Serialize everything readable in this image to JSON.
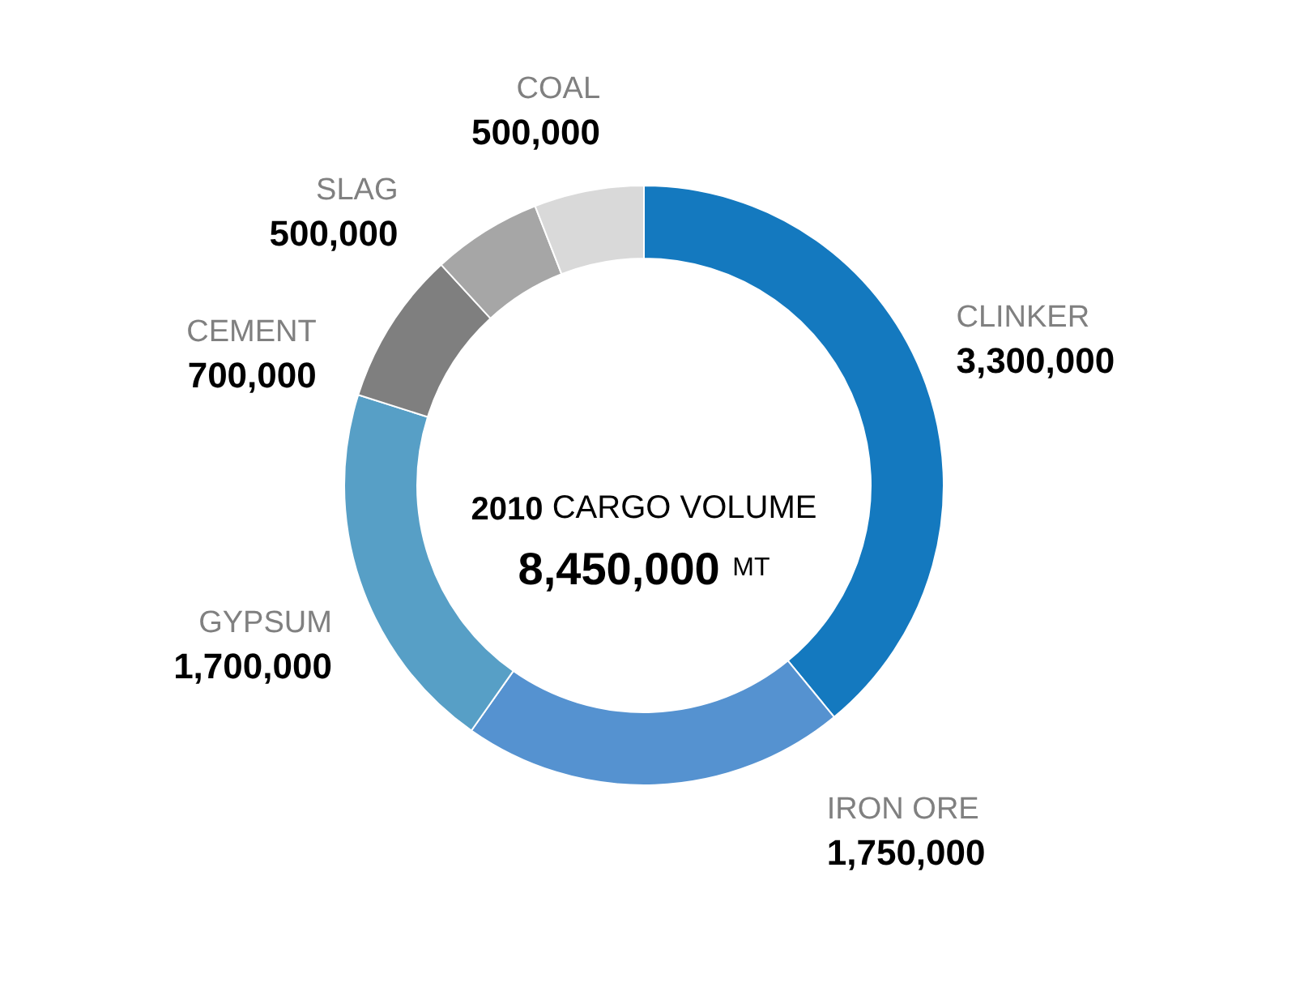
{
  "chart_data": {
    "type": "donut",
    "title": "2010 CARGO VOLUME",
    "subtitle": "8,450,000 MT",
    "categories": [
      "CLINKER",
      "IRON ORE",
      "GYPSUM",
      "CEMENT",
      "SLAG",
      "COAL"
    ],
    "values": [
      3300000,
      1750000,
      1700000,
      700000,
      500000,
      500000
    ],
    "value_labels": [
      "3,300,000",
      "1,750,000",
      "1,700,000",
      "700,000",
      "500,000",
      "500,000"
    ],
    "colors": [
      "#1479bf",
      "#5592d0",
      "#579fc6",
      "#7f7f7f",
      "#a6a6a6",
      "#d9d9d9"
    ]
  }
}
